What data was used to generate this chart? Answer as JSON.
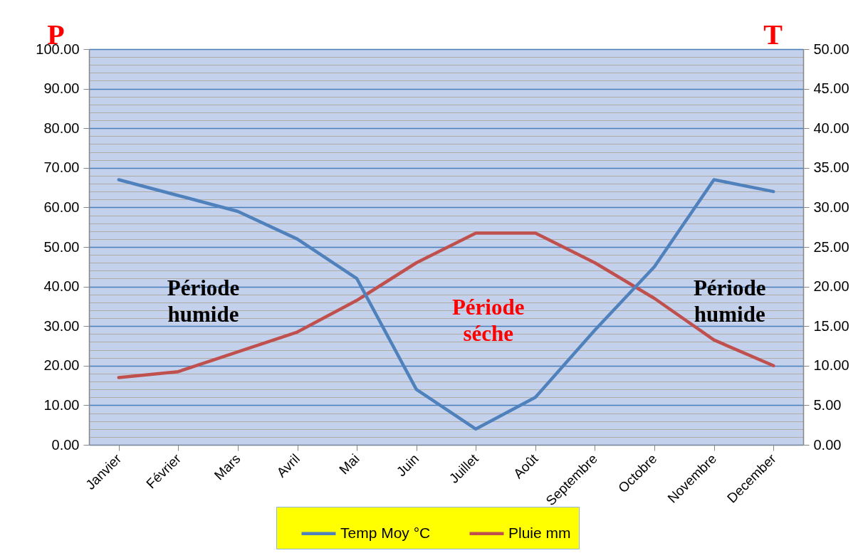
{
  "chart_data": {
    "type": "line",
    "categories": [
      "Janvier",
      "Février",
      "Mars",
      "Avril",
      "Mai",
      "Juin",
      "Juillet",
      "Août",
      "Septembre",
      "Octobre",
      "Novembre",
      "December"
    ],
    "series": [
      {
        "name": "Temp Moy °C",
        "color": "#4f81bd",
        "axis": "y2",
        "values": [
          33.5,
          31.5,
          29.5,
          26,
          21,
          7,
          2,
          6,
          14.5,
          22.5,
          33.5,
          32
        ]
      },
      {
        "name": "Pluie mm",
        "color": "#c0504d",
        "values": [
          17,
          18.5,
          23.5,
          28.5,
          36.5,
          46,
          53.5,
          53.5,
          46,
          37,
          26.5,
          20
        ]
      }
    ],
    "ylabel": "P",
    "y2label": "T",
    "ylim": [
      0,
      100
    ],
    "yticks": [
      {
        "value": 0,
        "label": "0.00"
      },
      {
        "value": 2,
        "label": null
      },
      {
        "value": 4,
        "label": null
      },
      {
        "value": 6,
        "label": null
      },
      {
        "value": 8,
        "label": null
      },
      {
        "value": 10,
        "label": "10.00"
      },
      {
        "value": 12,
        "label": null
      },
      {
        "value": 14,
        "label": null
      },
      {
        "value": 16,
        "label": null
      },
      {
        "value": 18,
        "label": null
      },
      {
        "value": 20,
        "label": "20.00"
      },
      {
        "value": 22,
        "label": null
      },
      {
        "value": 24,
        "label": null
      },
      {
        "value": 26,
        "label": null
      },
      {
        "value": 28,
        "label": null
      },
      {
        "value": 30,
        "label": "30.00"
      },
      {
        "value": 32,
        "label": null
      },
      {
        "value": 34,
        "label": null
      },
      {
        "value": 36,
        "label": null
      },
      {
        "value": 38,
        "label": null
      },
      {
        "value": 40,
        "label": "40.00"
      },
      {
        "value": 42,
        "label": null
      },
      {
        "value": 44,
        "label": null
      },
      {
        "value": 46,
        "label": null
      },
      {
        "value": 48,
        "label": null
      },
      {
        "value": 50,
        "label": "50.00"
      },
      {
        "value": 52,
        "label": null
      },
      {
        "value": 54,
        "label": null
      },
      {
        "value": 56,
        "label": null
      },
      {
        "value": 58,
        "label": null
      },
      {
        "value": 60,
        "label": "60.00"
      },
      {
        "value": 62,
        "label": null
      },
      {
        "value": 64,
        "label": null
      },
      {
        "value": 66,
        "label": null
      },
      {
        "value": 68,
        "label": null
      },
      {
        "value": 70,
        "label": "70.00"
      },
      {
        "value": 72,
        "label": null
      },
      {
        "value": 74,
        "label": null
      },
      {
        "value": 76,
        "label": null
      },
      {
        "value": 78,
        "label": null
      },
      {
        "value": 80,
        "label": "80.00"
      },
      {
        "value": 82,
        "label": null
      },
      {
        "value": 84,
        "label": null
      },
      {
        "value": 86,
        "label": null
      },
      {
        "value": 88,
        "label": null
      },
      {
        "value": 90,
        "label": "90.00"
      },
      {
        "value": 92,
        "label": null
      },
      {
        "value": 94,
        "label": null
      },
      {
        "value": 96,
        "label": null
      },
      {
        "value": 98,
        "label": null
      },
      {
        "value": 100,
        "label": "100.00"
      }
    ],
    "y2lim": [
      0,
      50
    ],
    "y2ticks": [
      {
        "value": 0,
        "label": "0.00"
      },
      {
        "value": 5,
        "label": "5.00"
      },
      {
        "value": 10,
        "label": "10.00"
      },
      {
        "value": 15,
        "label": "15.00"
      },
      {
        "value": 20,
        "label": "20.00"
      },
      {
        "value": 25,
        "label": "25.00"
      },
      {
        "value": 30,
        "label": "30.00"
      },
      {
        "value": 35,
        "label": "35.00"
      },
      {
        "value": 40,
        "label": "40.00"
      },
      {
        "value": 45,
        "label": "45.00"
      },
      {
        "value": 50,
        "label": "50.00"
      }
    ],
    "annotations": [
      "Période humide",
      "Période séche",
      "Période humide"
    ],
    "grid": "y",
    "legend": "bottom",
    "marker": "none",
    "line_style": "solid"
  }
}
